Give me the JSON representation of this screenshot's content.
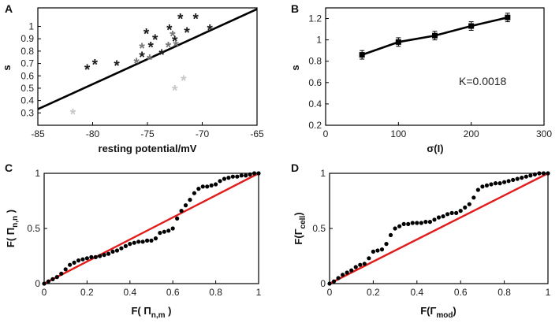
{
  "chart_data": [
    {
      "panel": "A",
      "type": "scatter",
      "xlabel": "resting potential/mV",
      "ylabel": "s",
      "xlim": [
        -85,
        -65
      ],
      "ylim": [
        0.2,
        1.15
      ],
      "xticks": [
        -85,
        -80,
        -75,
        -70,
        -65
      ],
      "xtick_labels": [
        "-85",
        "-80",
        "-75",
        "-70",
        "-65"
      ],
      "yticks": [
        0.3,
        0.4,
        0.5,
        0.6,
        0.7,
        0.8,
        0.9,
        1
      ],
      "ytick_labels": [
        "0.3",
        "0.4",
        "0.5",
        "0.6",
        "0.7",
        "0.8",
        "0.9",
        "1"
      ],
      "marker": "asterisk",
      "series": [
        {
          "name": "dark",
          "color": "#1a1a1a",
          "x": [
            -80.5,
            -79.8,
            -77.8,
            -75.5,
            -75.1,
            -74.7,
            -74.3,
            -73.7,
            -73.0,
            -72.5,
            -72.0,
            -71.4,
            -70.6,
            -69.3
          ],
          "y": [
            0.66,
            0.7,
            0.69,
            0.76,
            0.95,
            0.84,
            0.9,
            0.78,
            0.98,
            0.89,
            1.07,
            0.96,
            1.07,
            0.98
          ]
        },
        {
          "name": "mid",
          "color": "#777777",
          "x": [
            -76.0,
            -75.5,
            -74.8,
            -73.1,
            -72.7,
            -72.4
          ],
          "y": [
            0.71,
            0.83,
            0.74,
            0.84,
            0.93,
            0.85
          ]
        },
        {
          "name": "light",
          "color": "#c8c8c8",
          "x": [
            -81.8,
            -72.5,
            -71.7
          ],
          "y": [
            0.3,
            0.49,
            0.57
          ]
        }
      ],
      "fit_line": {
        "x": [
          -85,
          -65
        ],
        "y": [
          0.33,
          1.14
        ]
      }
    },
    {
      "panel": "B",
      "type": "line",
      "xlabel": "σ(I)",
      "ylabel": "s",
      "xlim": [
        0,
        300
      ],
      "ylim": [
        0.2,
        1.3
      ],
      "xticks": [
        0,
        100,
        200,
        300
      ],
      "xtick_labels": [
        "0",
        "100",
        "200",
        "300"
      ],
      "yticks": [
        0.2,
        0.4,
        0.6,
        0.8,
        1,
        1.2
      ],
      "ytick_labels": [
        "0.2",
        "0.4",
        "0.6",
        "0.8",
        "1",
        "1.2"
      ],
      "x": [
        50,
        100,
        150,
        200,
        250
      ],
      "y": [
        0.86,
        0.98,
        1.04,
        1.13,
        1.21
      ],
      "error": [
        0.04,
        0.04,
        0.04,
        0.04,
        0.04
      ],
      "annotation": "K=0.0018"
    },
    {
      "panel": "C",
      "type": "scatter",
      "ylabel_main": "F( Π",
      "ylabel_sub": "n,n",
      "ylabel_end": " )",
      "xlabel_main": "F( Π",
      "xlabel_sub": "n,m",
      "xlabel_end": " )",
      "xlim": [
        0,
        1
      ],
      "ylim": [
        0,
        1
      ],
      "xticks": [
        0,
        0.2,
        0.4,
        0.6,
        0.8,
        1
      ],
      "xtick_labels": [
        "0",
        "0.2",
        "0.4",
        "0.6",
        "0.8",
        "1"
      ],
      "yticks": [
        0,
        0.5,
        1
      ],
      "ytick_labels": [
        "0",
        "0.5",
        "1"
      ],
      "reference_line": {
        "x": [
          0,
          1
        ],
        "y": [
          0,
          1
        ],
        "color": "#e21b1b"
      },
      "curve": {
        "x": [
          0.0,
          0.02,
          0.04,
          0.06,
          0.08,
          0.1,
          0.12,
          0.14,
          0.16,
          0.18,
          0.2,
          0.22,
          0.24,
          0.26,
          0.28,
          0.3,
          0.32,
          0.34,
          0.36,
          0.38,
          0.4,
          0.42,
          0.44,
          0.46,
          0.48,
          0.5,
          0.52,
          0.54,
          0.56,
          0.58,
          0.6,
          0.62,
          0.64,
          0.66,
          0.68,
          0.7,
          0.72,
          0.74,
          0.76,
          0.78,
          0.8,
          0.82,
          0.84,
          0.86,
          0.88,
          0.9,
          0.92,
          0.94,
          0.96,
          0.98,
          1.0
        ],
        "y": [
          0.0,
          0.02,
          0.04,
          0.06,
          0.09,
          0.13,
          0.17,
          0.19,
          0.21,
          0.22,
          0.23,
          0.24,
          0.24,
          0.25,
          0.26,
          0.27,
          0.29,
          0.3,
          0.32,
          0.34,
          0.36,
          0.37,
          0.38,
          0.38,
          0.39,
          0.39,
          0.41,
          0.46,
          0.47,
          0.48,
          0.5,
          0.59,
          0.66,
          0.71,
          0.76,
          0.82,
          0.86,
          0.88,
          0.88,
          0.89,
          0.9,
          0.93,
          0.95,
          0.96,
          0.97,
          0.97,
          0.98,
          0.98,
          0.99,
          1.0,
          1.0
        ]
      }
    },
    {
      "panel": "D",
      "type": "scatter",
      "ylabel_main": "F(Γ",
      "ylabel_sub": "cell",
      "ylabel_end": ")",
      "xlabel_main": "F(Γ",
      "xlabel_sub": "mod",
      "xlabel_end": ")",
      "xlim": [
        0,
        1
      ],
      "ylim": [
        0,
        1
      ],
      "xticks": [
        0,
        0.2,
        0.4,
        0.6,
        0.8,
        1
      ],
      "xtick_labels": [
        "0",
        "0.2",
        "0.4",
        "0.6",
        "0.8",
        "1"
      ],
      "yticks": [
        0,
        0.5,
        1
      ],
      "ytick_labels": [
        "0",
        "0.5",
        "1"
      ],
      "reference_line": {
        "x": [
          0,
          1
        ],
        "y": [
          0,
          1
        ],
        "color": "#e21b1b"
      },
      "curve": {
        "x": [
          0.0,
          0.02,
          0.04,
          0.06,
          0.08,
          0.1,
          0.12,
          0.14,
          0.16,
          0.18,
          0.2,
          0.22,
          0.24,
          0.26,
          0.28,
          0.3,
          0.32,
          0.34,
          0.36,
          0.38,
          0.4,
          0.42,
          0.44,
          0.46,
          0.48,
          0.5,
          0.52,
          0.54,
          0.56,
          0.58,
          0.6,
          0.62,
          0.64,
          0.66,
          0.68,
          0.7,
          0.72,
          0.74,
          0.76,
          0.78,
          0.8,
          0.82,
          0.84,
          0.86,
          0.88,
          0.9,
          0.92,
          0.94,
          0.96,
          0.98,
          1.0
        ],
        "y": [
          0.0,
          0.02,
          0.05,
          0.08,
          0.1,
          0.12,
          0.15,
          0.17,
          0.18,
          0.23,
          0.29,
          0.3,
          0.31,
          0.36,
          0.44,
          0.5,
          0.52,
          0.54,
          0.54,
          0.55,
          0.55,
          0.55,
          0.56,
          0.56,
          0.58,
          0.6,
          0.61,
          0.63,
          0.64,
          0.64,
          0.66,
          0.69,
          0.72,
          0.78,
          0.85,
          0.88,
          0.89,
          0.9,
          0.91,
          0.91,
          0.92,
          0.93,
          0.94,
          0.95,
          0.96,
          0.97,
          0.98,
          0.99,
          1.0,
          1.0,
          1.0
        ]
      }
    }
  ]
}
